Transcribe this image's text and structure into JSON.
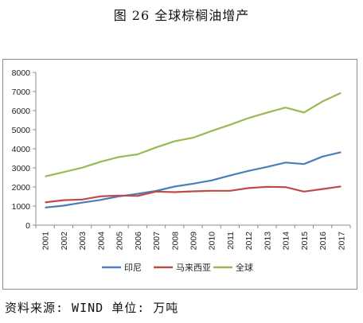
{
  "figure_title": "图 26  全球棕榈油增产",
  "source_note": "资料来源: WIND 单位: 万吨",
  "chart_data": {
    "type": "line",
    "title": "",
    "xlabel": "",
    "ylabel": "",
    "x": [
      "2001",
      "2002",
      "2003",
      "2004",
      "2005",
      "2006",
      "2007",
      "2008",
      "2009",
      "2010",
      "2011",
      "2012",
      "2013",
      "2014",
      "2015",
      "2016",
      "2017"
    ],
    "ylim": [
      0,
      8000
    ],
    "yticks": [
      0,
      1000,
      2000,
      3000,
      4000,
      5000,
      6000,
      7000,
      8000
    ],
    "grid": false,
    "legend_position": "bottom",
    "series": [
      {
        "name": "印尼",
        "color": "#4a7ebb",
        "values": [
          920,
          1020,
          1180,
          1320,
          1510,
          1640,
          1790,
          2020,
          2170,
          2340,
          2600,
          2840,
          3050,
          3280,
          3200,
          3590,
          3820
        ]
      },
      {
        "name": "马来西亚",
        "color": "#be4b48",
        "values": [
          1190,
          1310,
          1340,
          1510,
          1550,
          1530,
          1760,
          1730,
          1770,
          1800,
          1800,
          1940,
          2010,
          1990,
          1760,
          1890,
          2030
        ]
      },
      {
        "name": "全球",
        "color": "#98b954",
        "values": [
          2550,
          2780,
          3010,
          3320,
          3570,
          3710,
          4070,
          4390,
          4580,
          4930,
          5260,
          5610,
          5890,
          6160,
          5900,
          6480,
          6930
        ]
      }
    ]
  }
}
